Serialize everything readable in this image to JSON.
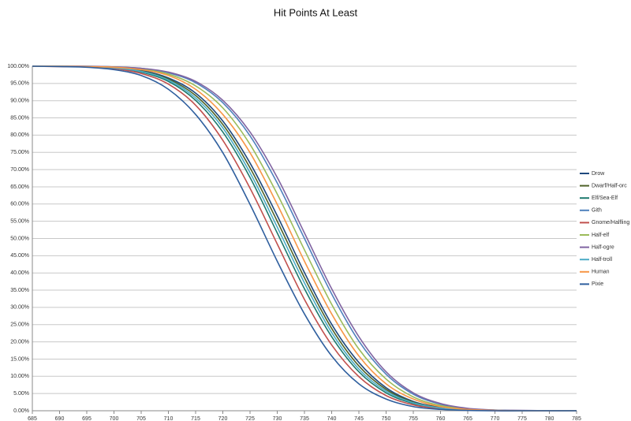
{
  "chart_data": {
    "type": "line",
    "title": "Hit Points At Least",
    "x": [
      685,
      690,
      695,
      700,
      705,
      710,
      715,
      720,
      725,
      730,
      735,
      740,
      745,
      750,
      755,
      760,
      765,
      770,
      775,
      780,
      785
    ],
    "xlim": [
      685,
      785
    ],
    "xticks": [
      685,
      690,
      695,
      700,
      705,
      710,
      715,
      720,
      725,
      730,
      735,
      740,
      745,
      750,
      755,
      760,
      765,
      770,
      775,
      780,
      785
    ],
    "ylim": [
      0,
      100
    ],
    "yticks": [
      {
        "value": 0,
        "label": "0.00%"
      },
      {
        "value": 5,
        "label": "5.00%"
      },
      {
        "value": 10,
        "label": "10.00%"
      },
      {
        "value": 15,
        "label": "15.00%"
      },
      {
        "value": 20,
        "label": "20.00%"
      },
      {
        "value": 25,
        "label": "25.00%"
      },
      {
        "value": 30,
        "label": "30.00%"
      },
      {
        "value": 35,
        "label": "35.00%"
      },
      {
        "value": 40,
        "label": "40.00%"
      },
      {
        "value": 45,
        "label": "45.00%"
      },
      {
        "value": 50,
        "label": "50.00%"
      },
      {
        "value": 55,
        "label": "55.00%"
      },
      {
        "value": 60,
        "label": "60.00%"
      },
      {
        "value": 65,
        "label": "65.00%"
      },
      {
        "value": 70,
        "label": "70.00%"
      },
      {
        "value": 75,
        "label": "75.00%"
      },
      {
        "value": 80,
        "label": "80.00%"
      },
      {
        "value": 85,
        "label": "85.00%"
      },
      {
        "value": 90,
        "label": "90.00%"
      },
      {
        "value": 95,
        "label": "95.00%"
      },
      {
        "value": 100,
        "label": "100.00%"
      }
    ],
    "grid": true,
    "legend": "right",
    "series": [
      {
        "name": "Drow",
        "color": "#1f497d",
        "values": [
          100,
          100,
          99.9,
          99.6,
          98.8,
          96.6,
          92.2,
          84.1,
          71.9,
          56.6,
          40.1,
          25.1,
          14.0,
          6.7,
          2.7,
          1.0,
          0.3,
          0.1,
          0,
          0,
          0
        ]
      },
      {
        "name": "Dwarf/Half-orc",
        "color": "#4f6228",
        "values": [
          100,
          100,
          99.9,
          99.6,
          98.6,
          96.3,
          91.5,
          83.1,
          70.5,
          55.0,
          38.6,
          23.9,
          13.0,
          6.2,
          2.5,
          0.9,
          0.3,
          0.1,
          0,
          0,
          0
        ]
      },
      {
        "name": "Elf/Sea-Elf",
        "color": "#1d7a6e",
        "values": [
          100,
          100,
          99.8,
          99.4,
          98.3,
          95.6,
          90.1,
          80.9,
          67.7,
          51.6,
          35.4,
          21.5,
          11.3,
          5.2,
          2.1,
          0.7,
          0.2,
          0.1,
          0,
          0,
          0
        ]
      },
      {
        "name": "Gith",
        "color": "#4f81bd",
        "values": [
          100,
          100,
          100,
          99.8,
          99.4,
          98.1,
          95.2,
          89.4,
          79.8,
          66.1,
          50,
          33.9,
          20.2,
          10.6,
          4.8,
          1.9,
          0.6,
          0.2,
          0,
          0,
          0
        ]
      },
      {
        "name": "Gnome/Halfling",
        "color": "#c0504d",
        "values": [
          100,
          99.9,
          99.8,
          99.3,
          97.9,
          94.8,
          88.7,
          78.5,
          64.6,
          48.4,
          32.3,
          19.1,
          9.9,
          4.4,
          1.7,
          0.6,
          0.2,
          0,
          0,
          0,
          0
        ]
      },
      {
        "name": "Half-elf",
        "color": "#9bbb59",
        "values": [
          100,
          100,
          99.9,
          99.8,
          99.2,
          97.7,
          94.3,
          87.9,
          77.3,
          62.9,
          46.7,
          30.9,
          17.9,
          9.2,
          4.0,
          1.5,
          0.5,
          0.1,
          0,
          0,
          0
        ]
      },
      {
        "name": "Half-ogre",
        "color": "#8064a2",
        "values": [
          100,
          100,
          100,
          99.8,
          99.4,
          98.3,
          95.6,
          90.1,
          80.9,
          67.7,
          51.6,
          35.4,
          21.5,
          11.3,
          5.2,
          2.1,
          0.7,
          0.2,
          0.1,
          0,
          0
        ]
      },
      {
        "name": "Half-troll",
        "color": "#4bacc6",
        "values": [
          100,
          100,
          99.9,
          99.5,
          98.5,
          96.0,
          90.8,
          82.1,
          69.1,
          53.3,
          37.1,
          22.7,
          12.1,
          5.7,
          2.3,
          0.8,
          0.2,
          0.1,
          0,
          0,
          0
        ]
      },
      {
        "name": "Human",
        "color": "#f79646",
        "values": [
          100,
          100,
          99.9,
          99.7,
          99.0,
          97.3,
          93.3,
          86.0,
          74.9,
          59.9,
          43.4,
          28.1,
          15.9,
          7.8,
          3.4,
          1.2,
          0.4,
          0.1,
          0,
          0,
          0
        ]
      },
      {
        "name": "Pixie",
        "color": "#2f5f9e",
        "values": [
          100,
          99.9,
          99.7,
          99.0,
          97.3,
          93.3,
          86.0,
          74.9,
          59.9,
          43.4,
          28.1,
          15.9,
          7.8,
          3.4,
          1.2,
          0.4,
          0.1,
          0,
          0,
          0,
          0
        ]
      }
    ]
  }
}
